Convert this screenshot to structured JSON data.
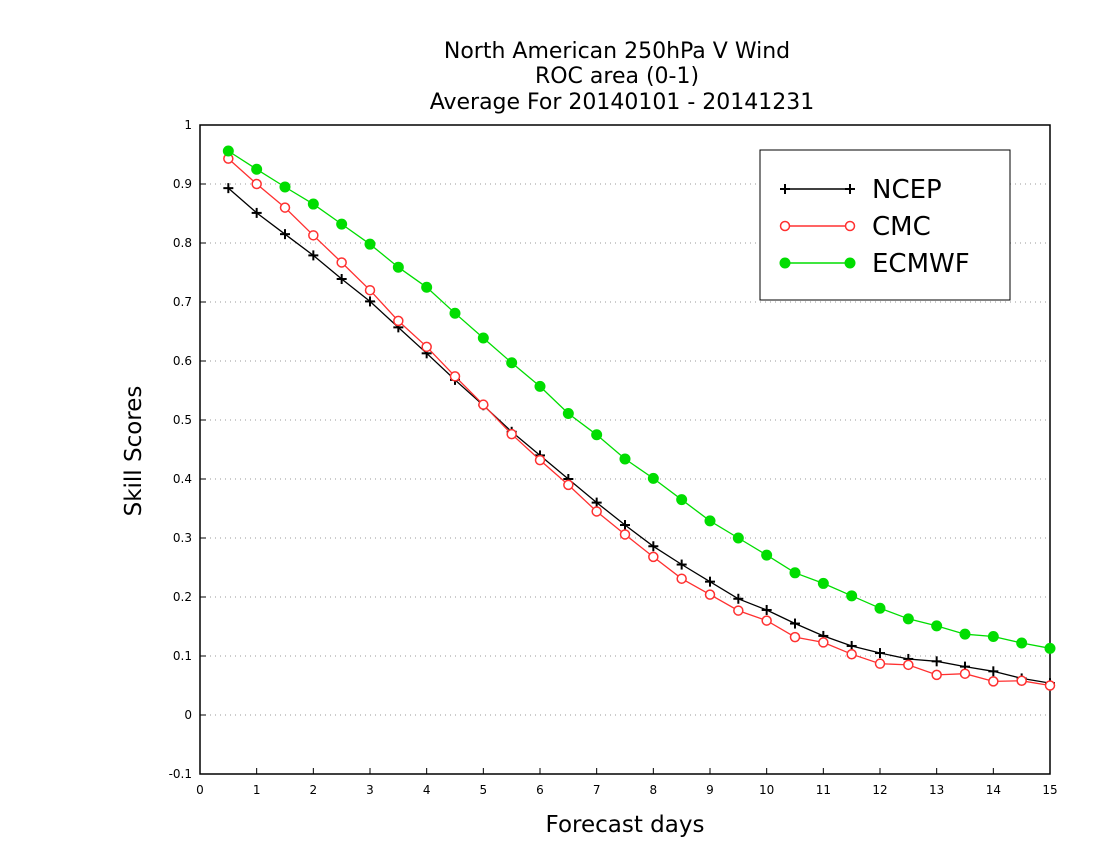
{
  "chart_data": {
    "type": "line",
    "title": [
      "North American 250hPa V Wind",
      "ROC area (0-1)",
      "Average For 20140101 - 20141231"
    ],
    "xlabel": "Forecast days",
    "ylabel": "Skill Scores",
    "xlim": [
      0,
      15
    ],
    "ylim": [
      -0.1,
      1
    ],
    "xticks": [
      0,
      1,
      2,
      3,
      4,
      5,
      6,
      7,
      8,
      9,
      10,
      11,
      12,
      13,
      14,
      15
    ],
    "yticks": [
      -0.1,
      0,
      0.1,
      0.2,
      0.3,
      0.4,
      0.5,
      0.6,
      0.7,
      0.8,
      0.9,
      1
    ],
    "ytick_labels": [
      "-0.1",
      "0",
      "0.1",
      "0.2",
      "0.3",
      "0.4",
      "0.5",
      "0.6",
      "0.7",
      "0.8",
      "0.9",
      "1"
    ],
    "grid": "horizontal dotted",
    "legend_position": "top-right",
    "x": [
      0.5,
      1,
      1.5,
      2,
      2.5,
      3,
      3.5,
      4,
      4.5,
      5,
      5.5,
      6,
      6.5,
      7,
      7.5,
      8,
      8.5,
      9,
      9.5,
      10,
      10.5,
      11,
      11.5,
      12,
      12.5,
      13,
      13.5,
      14,
      14.5,
      15
    ],
    "series": [
      {
        "name": "NCEP",
        "color": "#000000",
        "marker": "plus",
        "values": [
          0.893,
          0.851,
          0.815,
          0.779,
          0.739,
          0.701,
          0.657,
          0.613,
          0.568,
          0.525,
          0.48,
          0.44,
          0.4,
          0.36,
          0.322,
          0.286,
          0.255,
          0.226,
          0.197,
          0.178,
          0.155,
          0.134,
          0.117,
          0.105,
          0.095,
          0.091,
          0.082,
          0.074,
          0.062,
          0.054
        ]
      },
      {
        "name": "CMC",
        "color": "#ff3030",
        "marker": "open-circle",
        "values": [
          0.943,
          0.9,
          0.86,
          0.813,
          0.767,
          0.72,
          0.668,
          0.624,
          0.574,
          0.526,
          0.476,
          0.432,
          0.39,
          0.345,
          0.306,
          0.268,
          0.231,
          0.204,
          0.177,
          0.16,
          0.132,
          0.123,
          0.103,
          0.087,
          0.085,
          0.068,
          0.07,
          0.057,
          0.058,
          0.05
        ]
      },
      {
        "name": "ECMWF",
        "color": "#00dd00",
        "marker": "filled-circle",
        "values": [
          0.956,
          0.925,
          0.895,
          0.866,
          0.832,
          0.798,
          0.759,
          0.725,
          0.681,
          0.639,
          0.597,
          0.557,
          0.511,
          0.475,
          0.434,
          0.401,
          0.365,
          0.329,
          0.3,
          0.271,
          0.241,
          0.223,
          0.202,
          0.181,
          0.163,
          0.151,
          0.137,
          0.133,
          0.122,
          0.113
        ]
      }
    ]
  }
}
